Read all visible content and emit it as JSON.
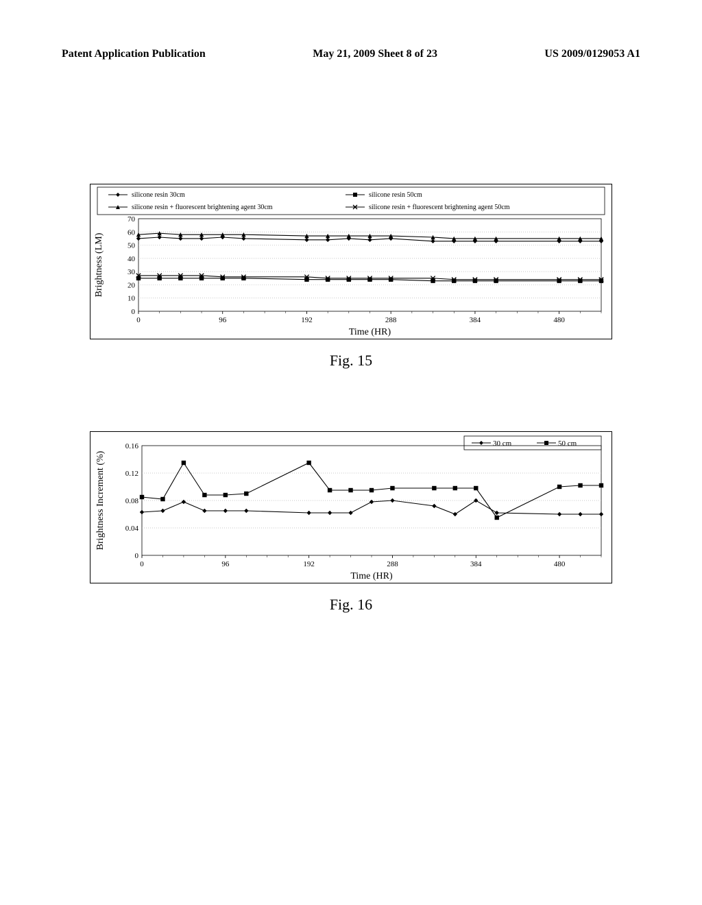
{
  "header": {
    "left": "Patent Application Publication",
    "center": "May 21, 2009  Sheet 8 of 23",
    "right": "US 2009/0129053 A1"
  },
  "fig15": {
    "caption": "Fig. 15",
    "type": "line",
    "xlabel": "Time (HR)",
    "ylabel": "Brightness (LM)",
    "xlim": [
      0,
      528
    ],
    "ylim": [
      0,
      70
    ],
    "xticks": [
      0,
      96,
      192,
      288,
      384,
      480
    ],
    "yticks": [
      0,
      10,
      20,
      30,
      40,
      50,
      60,
      70
    ],
    "label_fontsize": 14,
    "tick_fontsize": 11,
    "grid_color": "#b5b5b5",
    "line_color": "#000000",
    "background_color": "#ffffff",
    "series": [
      {
        "name": "silicone resin 30cm",
        "marker": "diamond",
        "x": [
          0,
          24,
          48,
          72,
          96,
          120,
          192,
          216,
          240,
          264,
          288,
          336,
          360,
          384,
          408,
          480,
          504,
          528
        ],
        "y": [
          55,
          56,
          55,
          55,
          56,
          55,
          54,
          54,
          55,
          54,
          55,
          53,
          53,
          53,
          53,
          53,
          53,
          53
        ]
      },
      {
        "name": "silicone resin 50cm",
        "marker": "square",
        "x": [
          0,
          24,
          48,
          72,
          96,
          120,
          192,
          216,
          240,
          264,
          288,
          336,
          360,
          384,
          408,
          480,
          504,
          528
        ],
        "y": [
          25,
          25,
          25,
          25,
          25,
          25,
          24,
          24,
          24,
          24,
          24,
          23,
          23,
          23,
          23,
          23,
          23,
          23
        ]
      },
      {
        "name": "silicone resin + fluorescent brightening agent 30cm",
        "marker": "triangle",
        "x": [
          0,
          24,
          48,
          72,
          96,
          120,
          192,
          216,
          240,
          264,
          288,
          336,
          360,
          384,
          408,
          480,
          504,
          528
        ],
        "y": [
          58,
          59,
          58,
          58,
          58,
          58,
          57,
          57,
          57,
          57,
          57,
          56,
          55,
          55,
          55,
          55,
          55,
          55
        ]
      },
      {
        "name": "silicone resin + fluorescent brightening agent 50cm",
        "marker": "x",
        "x": [
          0,
          24,
          48,
          72,
          96,
          120,
          192,
          216,
          240,
          264,
          288,
          336,
          360,
          384,
          408,
          480,
          504,
          528
        ],
        "y": [
          27,
          27,
          27,
          27,
          26,
          26,
          26,
          25,
          25,
          25,
          25,
          25,
          24,
          24,
          24,
          24,
          24,
          24
        ]
      }
    ]
  },
  "fig16": {
    "caption": "Fig. 16",
    "type": "line",
    "xlabel": "Time (HR)",
    "ylabel": "Brightness Increment (%)",
    "xlim": [
      0,
      528
    ],
    "ylim": [
      0,
      0.16
    ],
    "xticks": [
      0,
      96,
      192,
      288,
      384,
      480
    ],
    "yticks": [
      0,
      0.04,
      0.08,
      0.12,
      0.16
    ],
    "label_fontsize": 14,
    "tick_fontsize": 11,
    "grid_color": "#b5b5b5",
    "line_color": "#000000",
    "background_color": "#ffffff",
    "series": [
      {
        "name": "30 cm",
        "marker": "diamond",
        "x": [
          0,
          24,
          48,
          72,
          96,
          120,
          192,
          216,
          240,
          264,
          288,
          336,
          360,
          384,
          408,
          480,
          504,
          528
        ],
        "y": [
          0.063,
          0.065,
          0.078,
          0.065,
          0.065,
          0.065,
          0.062,
          0.062,
          0.062,
          0.078,
          0.08,
          0.072,
          0.06,
          0.08,
          0.062,
          0.06,
          0.06,
          0.06
        ]
      },
      {
        "name": "50 cm",
        "marker": "square",
        "x": [
          0,
          24,
          48,
          72,
          96,
          120,
          192,
          216,
          240,
          264,
          288,
          336,
          360,
          384,
          408,
          480,
          504,
          528
        ],
        "y": [
          0.085,
          0.082,
          0.135,
          0.088,
          0.088,
          0.09,
          0.135,
          0.095,
          0.095,
          0.095,
          0.098,
          0.098,
          0.098,
          0.098,
          0.055,
          0.1,
          0.102,
          0.102
        ]
      }
    ],
    "legend": [
      "30 cm",
      "50 cm"
    ]
  }
}
